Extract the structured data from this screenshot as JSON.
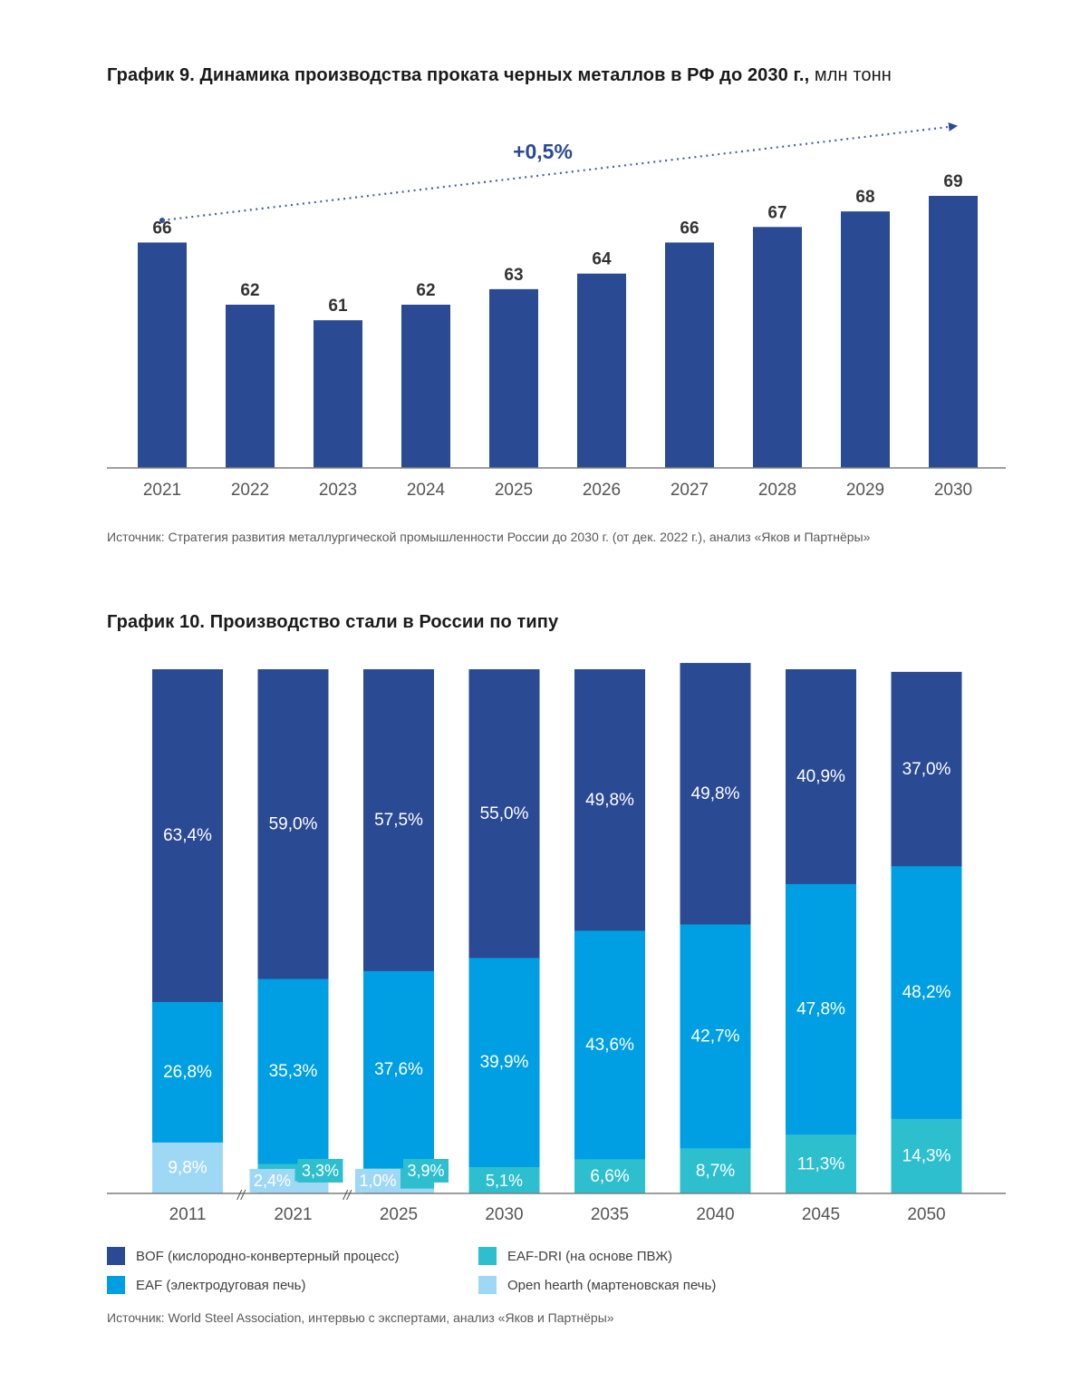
{
  "chart_data": [
    {
      "type": "bar",
      "title": "График 9. Динамика производства проката черных металлов в РФ до 2030 г.,",
      "unit": "млн тонн",
      "categories": [
        "2021",
        "2022",
        "2023",
        "2024",
        "2025",
        "2026",
        "2027",
        "2028",
        "2029",
        "2030"
      ],
      "values": [
        66,
        62,
        61,
        62,
        63,
        64,
        66,
        67,
        68,
        69
      ],
      "trend_label": "+0,5%",
      "ylim": [
        51.5,
        69
      ],
      "color": "#2b4a94",
      "source": "Источник: Стратегия развития металлургической промышленности России до 2030 г. (от дек. 2022 г.), анализ «Яков и Партнёры»"
    },
    {
      "type": "stacked-bar",
      "title": "График 10. Производство стали в России по типу",
      "categories": [
        "2011",
        "2021",
        "2025",
        "2030",
        "2035",
        "2040",
        "2045",
        "2050"
      ],
      "series": [
        {
          "name": "Open hearth (мартеновская печь)",
          "color": "#9fd8f5",
          "values": [
            9.8,
            2.4,
            1.0,
            0,
            0,
            0,
            0,
            0
          ],
          "labels": [
            "9,8%",
            "2,4%",
            "1,0%",
            "",
            "",
            "",
            "",
            ""
          ]
        },
        {
          "name": "EAF-DRI (на основе ПВЖ)",
          "color": "#2ebfcf",
          "values": [
            0,
            3.3,
            3.9,
            5.1,
            6.6,
            8.7,
            11.3,
            14.3
          ],
          "labels": [
            "",
            "3,3%",
            "3,9%",
            "5,1%",
            "6,6%",
            "8,7%",
            "11,3%",
            "14,3%"
          ]
        },
        {
          "name": "EAF (электродуговая печь)",
          "color": "#009fe3",
          "values": [
            26.8,
            35.3,
            37.6,
            39.9,
            43.6,
            42.7,
            47.8,
            48.2
          ],
          "labels": [
            "26,8%",
            "35,3%",
            "37,6%",
            "39,9%",
            "43,6%",
            "42,7%",
            "47,8%",
            "48,2%"
          ]
        },
        {
          "name": "BOF (кислородно-конвертерный процесс)",
          "color": "#2b4a94",
          "values": [
            63.4,
            59.0,
            57.5,
            55.0,
            49.8,
            49.8,
            40.9,
            37.0
          ],
          "labels": [
            "63,4%",
            "59,0%",
            "57,5%",
            "55,0%",
            "49,8%",
            "49,8%",
            "40,9%",
            "37,0%"
          ]
        }
      ],
      "axis_break_marks": [
        "//",
        "//"
      ],
      "legend": [
        {
          "label": "BOF (кислородно-конвертерный процесс)",
          "color": "#2b4a94"
        },
        {
          "label": "EAF-DRI (на основе ПВЖ)",
          "color": "#2ebfcf"
        },
        {
          "label": "EAF (электродуговая печь)",
          "color": "#009fe3"
        },
        {
          "label": "Open hearth (мартеновская печь)",
          "color": "#9fd8f5"
        }
      ],
      "source": "Источник: World Steel Association, интервью с экспертами, анализ «Яков и Партнёры»"
    }
  ]
}
